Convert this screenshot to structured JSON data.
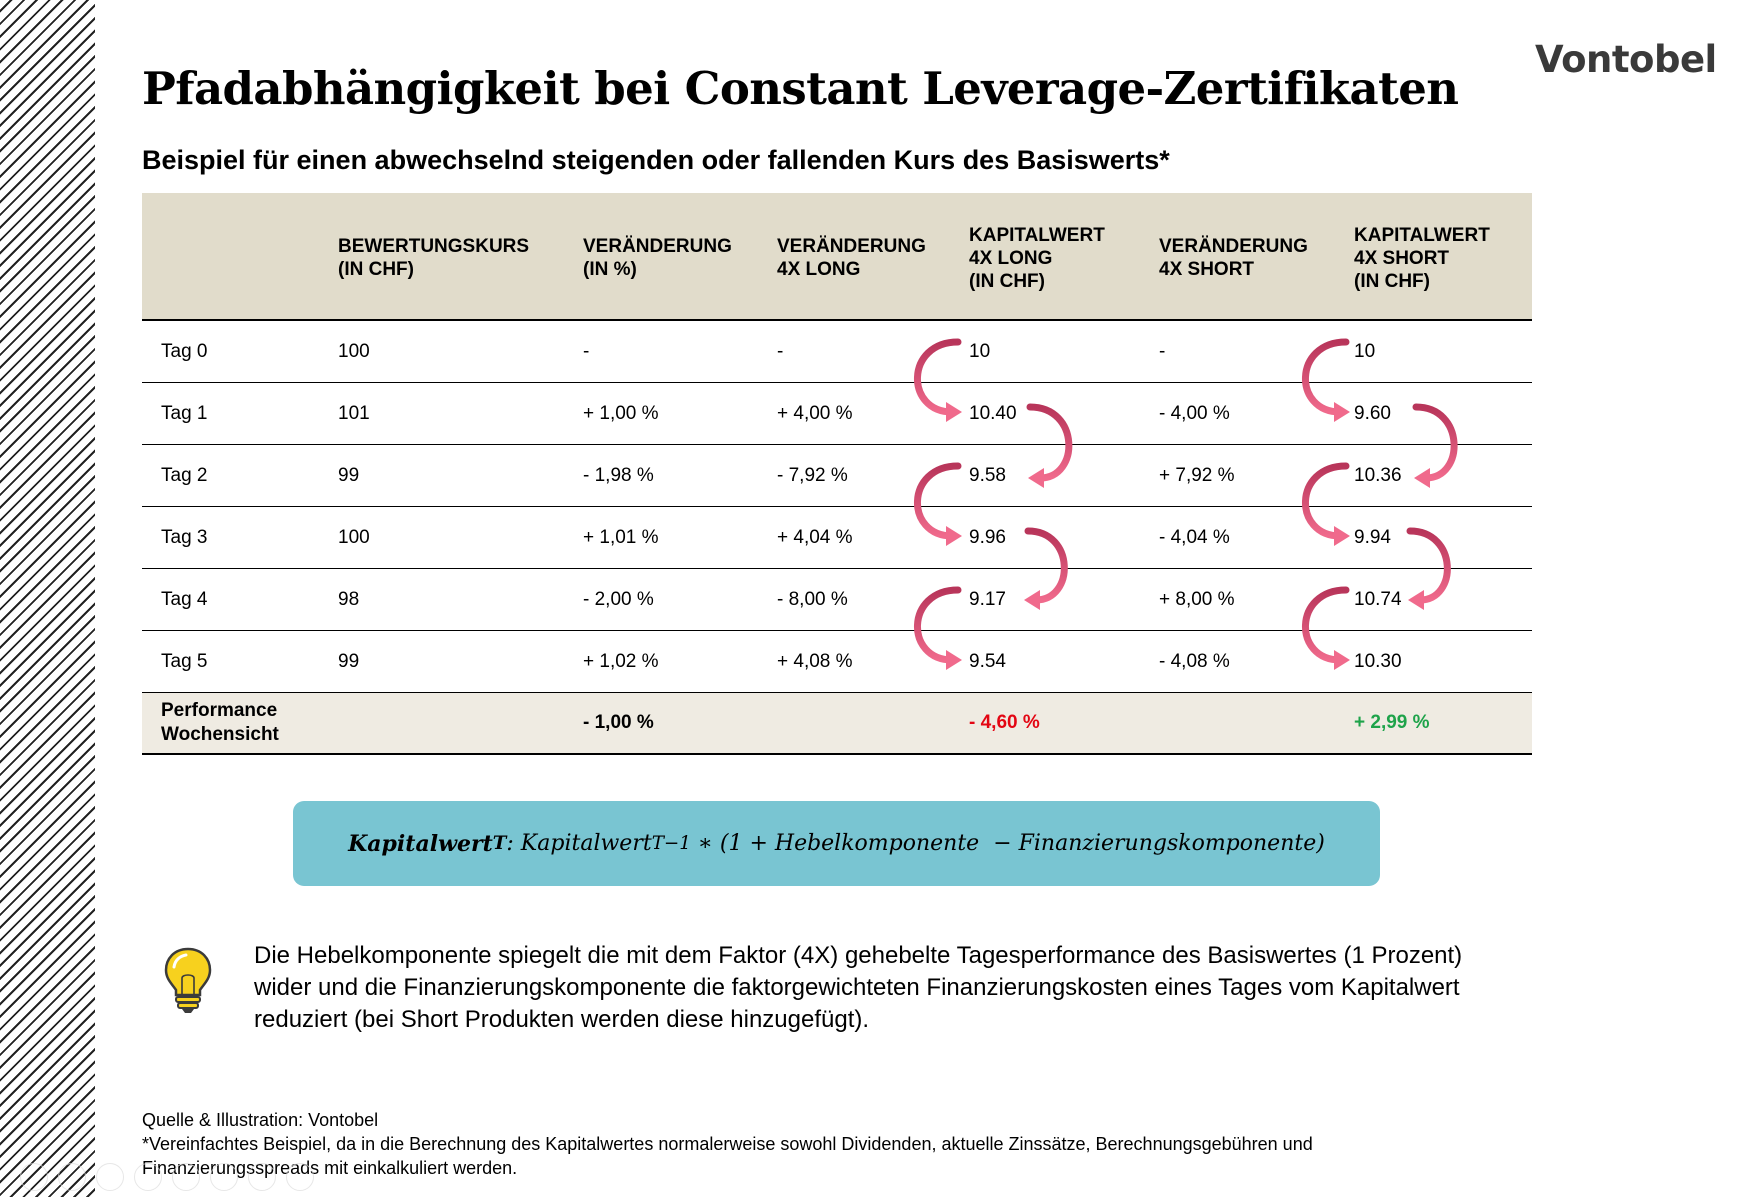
{
  "logo": "Vontobel",
  "title": "Pfadabhängigkeit bei Constant Leverage-Zertifikaten",
  "subtitle": "Beispiel für einen abwechselnd steigenden oder fallenden Kurs des Basiswerts*",
  "table": {
    "headers": [
      [
        "BEWERTUNGSKURS",
        "(IN CHF)"
      ],
      [
        "VERÄNDERUNG",
        "(IN %)"
      ],
      [
        "VERÄNDERUNG",
        "4X LONG"
      ],
      [
        "KAPITALWERT",
        "4X LONG",
        "(IN CHF)"
      ],
      [
        "VERÄNDERUNG",
        "4X SHORT"
      ],
      [
        "KAPITALWERT",
        "4X SHORT",
        "(IN CHF)"
      ]
    ],
    "rows": [
      [
        "Tag 0",
        "100",
        "-",
        "-",
        "10",
        "-",
        "10"
      ],
      [
        "Tag 1",
        "101",
        "+ 1,00 %",
        "+ 4,00 %",
        "10.40",
        "- 4,00 %",
        "9.60"
      ],
      [
        "Tag 2",
        "99",
        "- 1,98 %",
        "- 7,92 %",
        "9.58",
        "+ 7,92 %",
        "10.36"
      ],
      [
        "Tag 3",
        "100",
        "+ 1,01 %",
        "+ 4,04 %",
        "9.96",
        "- 4,04 %",
        "9.94"
      ],
      [
        "Tag 4",
        "98",
        "- 2,00 %",
        "- 8,00 %",
        "9.17",
        "+ 8,00 %",
        "10.74"
      ],
      [
        "Tag 5",
        "99",
        "+ 1,02 %",
        "+ 4,08 %",
        "9.54",
        "- 4,08 %",
        "10.30"
      ]
    ],
    "performance": {
      "label_line1": "Performance",
      "label_line2": "Wochensicht",
      "change": "- 1,00 %",
      "long": "- 4,60 %",
      "short": "+ 2,99 %"
    }
  },
  "formula": {
    "lhs": "Kapitalwert",
    "lhs_sub": "T",
    "rhs_a": ": Kapitalwert",
    "rhs_sub": "T−1",
    "rhs_b": " ∗ (1 + Hebelkomponente  − Finanzierungskomponente)"
  },
  "note": "Die Hebelkomponente spiegelt die mit dem Faktor (4X) gehebelte Tagesperformance des Basiswertes (1 Prozent) wider und die Finanzierungskomponente die faktorgewichteten Finanzierungskosten eines Tages vom Kapitalwert reduziert (bei Short Produkten werden diese hinzugefügt).",
  "source_line": "Quelle & Illustration: Vontobel",
  "footnote": "*Vereinfachtes Beispiel, da in die Berechnung des Kapitalwertes normalerweise sowohl Dividenden, aktuelle Zinssätze, Berechnungsgebühren und Finanzierungsspreads mit einkalkuliert werden.",
  "colors": {
    "header_bg": "#e1dccb",
    "formula_bg": "#79c5d2",
    "arrow_dark": "#b8355a",
    "arrow_light": "#f06a8c",
    "negative": "#e30613",
    "positive": "#1ea34a"
  }
}
